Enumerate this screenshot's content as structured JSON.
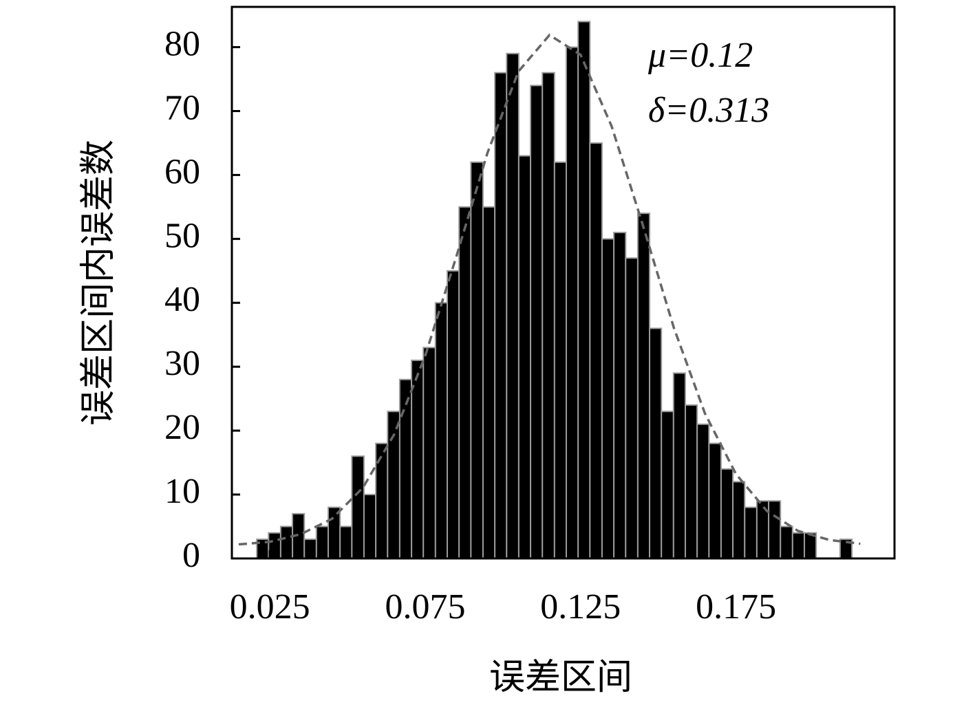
{
  "chart_data": {
    "type": "histogram",
    "xlabel": "误差区间",
    "ylabel": "误差区间内误差数",
    "annotations": [
      "μ=0.12",
      "δ=0.313"
    ],
    "bins": [
      0.0208,
      0.0246,
      0.0285,
      0.0323,
      0.0361,
      0.04,
      0.0438,
      0.0476,
      0.0514,
      0.0553,
      0.0591,
      0.0629,
      0.0668,
      0.0706,
      0.0744,
      0.0783,
      0.0821,
      0.0859,
      0.0897,
      0.0936,
      0.0974,
      0.1012,
      0.1051,
      0.1089,
      0.1127,
      0.1166,
      0.1204,
      0.1242,
      0.128,
      0.1319,
      0.1357,
      0.1395,
      0.1434,
      0.1472,
      0.151,
      0.1549,
      0.1587,
      0.1625,
      0.1663,
      0.1702,
      0.174,
      0.1778,
      0.1817,
      0.1855,
      0.1893,
      0.1932,
      0.197,
      0.2008,
      0.2046,
      0.2085,
      0.2123
    ],
    "values": [
      3,
      4,
      5,
      7,
      3,
      5,
      8,
      5,
      16,
      10,
      18,
      23,
      28,
      31,
      33,
      40,
      45,
      55,
      62,
      55,
      76,
      79,
      63,
      74,
      76,
      62,
      80,
      84,
      65,
      50,
      51,
      47,
      54,
      36,
      23,
      29,
      24,
      21,
      18,
      14,
      12,
      8,
      9,
      9,
      5,
      4,
      4,
      0,
      0,
      3
    ],
    "color": "#000000",
    "curve": {
      "x": [
        0.015,
        0.025,
        0.035,
        0.045,
        0.055,
        0.065,
        0.075,
        0.085,
        0.095,
        0.105,
        0.115,
        0.125,
        0.135,
        0.145,
        0.155,
        0.165,
        0.175,
        0.185,
        0.195,
        0.205,
        0.215
      ],
      "values": [
        2.2,
        2.6,
        3.8,
        6.2,
        11.1,
        19.4,
        31.7,
        47.2,
        63.4,
        76.2,
        81.9,
        78.8,
        67.6,
        52.2,
        36.1,
        22.7,
        13.2,
        7.4,
        4.3,
        2.9,
        2.3
      ],
      "color": "#666666",
      "style": "dashed"
    },
    "xlim": [
      0.0128,
      0.226
    ],
    "ylim": [
      0,
      86.3
    ],
    "xticks": [
      0.025,
      0.075,
      0.125,
      0.175
    ],
    "yticks": [
      0,
      10,
      20,
      30,
      40,
      50,
      60,
      70,
      80
    ]
  }
}
